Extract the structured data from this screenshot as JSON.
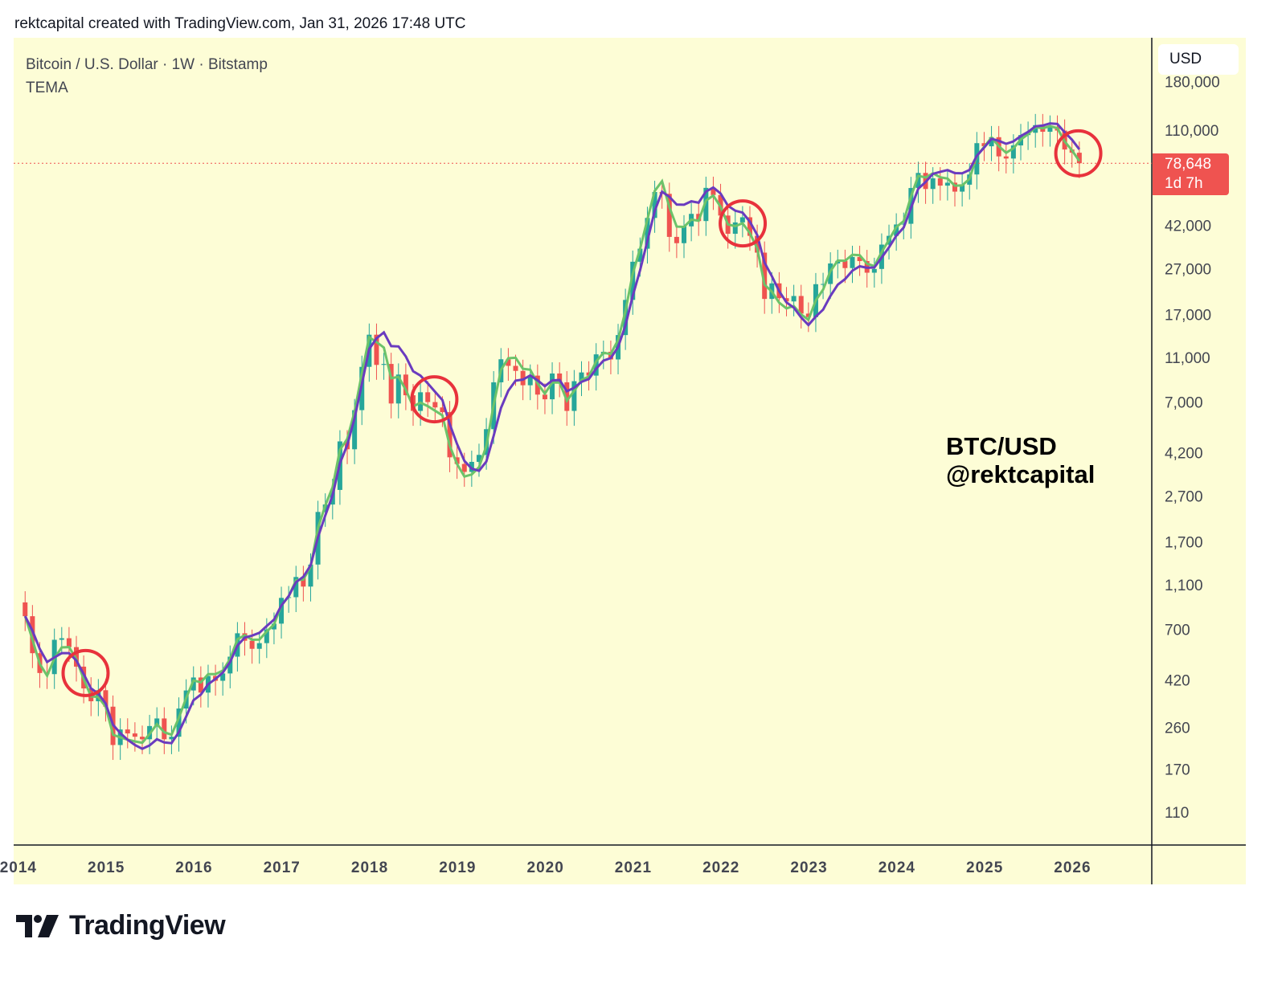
{
  "header": {
    "text": "rektcapital created with TradingView.com, Jan 31, 2026 17:48 UTC"
  },
  "legend": {
    "symbol": "Bitcoin / U.S. Dollar · 1W · Bitstamp",
    "indicator": "TEMA"
  },
  "currency_button": "USD",
  "watermark": {
    "line1": "BTC/USD",
    "line2": "@rektcapital"
  },
  "price_tag": {
    "price": "78,648",
    "countdown": "1d 7h"
  },
  "logo": {
    "text": "TradingView"
  },
  "colors": {
    "background": "#fdfdd6",
    "up": "#26a69a",
    "down": "#ef5350",
    "tema_fast": "#6cc36a",
    "tema_slow": "#6a3bbf",
    "circles": "#e8323c"
  },
  "chart_data": {
    "type": "candlestick",
    "scale": "log",
    "ylim": [
      60,
      200000
    ],
    "xlim": [
      2013.92,
      2026.85
    ],
    "y_ticks": [
      "180,000",
      "110,000",
      "42,000",
      "27,000",
      "17,000",
      "11,000",
      "7,000",
      "4,200",
      "2,700",
      "1,700",
      "1,100",
      "700",
      "420",
      "260",
      "170",
      "110"
    ],
    "x_ticks": [
      "2014",
      "2015",
      "2016",
      "2017",
      "2018",
      "2019",
      "2020",
      "2021",
      "2022",
      "2023",
      "2024",
      "2025",
      "2026"
    ],
    "grid": false,
    "start": "2014-01",
    "interval": "monthly (approx. of weekly candles)",
    "closes": [
      800,
      550,
      450,
      445,
      630,
      640,
      585,
      480,
      385,
      338,
      378,
      320,
      217,
      254,
      244,
      236,
      230,
      263,
      284,
      230,
      236,
      314,
      377,
      430,
      369,
      437,
      416,
      448,
      531,
      673,
      624,
      575,
      609,
      700,
      742,
      963,
      970,
      1190,
      1080,
      1350,
      2300,
      2480,
      2875,
      4700,
      4340,
      6450,
      10000,
      13850,
      10200,
      10300,
      6900,
      9250,
      7500,
      6400,
      7730,
      7000,
      6630,
      6320,
      4000,
      3740,
      3450,
      3820,
      4100,
      5320,
      8550,
      10800,
      10100,
      9600,
      8300,
      9150,
      7550,
      7200,
      9350,
      8550,
      6400,
      8650,
      9450,
      9150,
      11350,
      11650,
      10780,
      13800,
      19700,
      29000,
      33100,
      45200,
      58800,
      57700,
      37300,
      35000,
      41500,
      47100,
      43800,
      61300,
      57000,
      46300,
      38500,
      43200,
      45500,
      37700,
      31800,
      19900,
      23300,
      20050,
      19400,
      20500,
      17150,
      16550,
      23100,
      23150,
      28500,
      29250,
      27200,
      30450,
      29200,
      25950,
      26960,
      34500,
      37700,
      42300,
      42600,
      61200,
      71300,
      60600,
      67500,
      62700,
      64600,
      59000,
      63300,
      70200,
      96400,
      93400,
      102400,
      84300,
      82500,
      94200,
      104600,
      107100,
      115700,
      108200,
      114000,
      109500,
      90400,
      87500,
      78648
    ],
    "current_price": 78648,
    "indicators": [
      {
        "name": "TEMA",
        "color": "#6cc36a"
      },
      {
        "name": "TEMA",
        "color": "#6a3bbf"
      }
    ],
    "annotations": [
      {
        "type": "circle",
        "date": 2014.73,
        "price": 450
      },
      {
        "type": "circle",
        "date": 2018.7,
        "price": 7200
      },
      {
        "type": "circle",
        "date": 2022.21,
        "price": 42750
      },
      {
        "type": "circle",
        "date": 2026.03,
        "price": 87000
      }
    ]
  }
}
